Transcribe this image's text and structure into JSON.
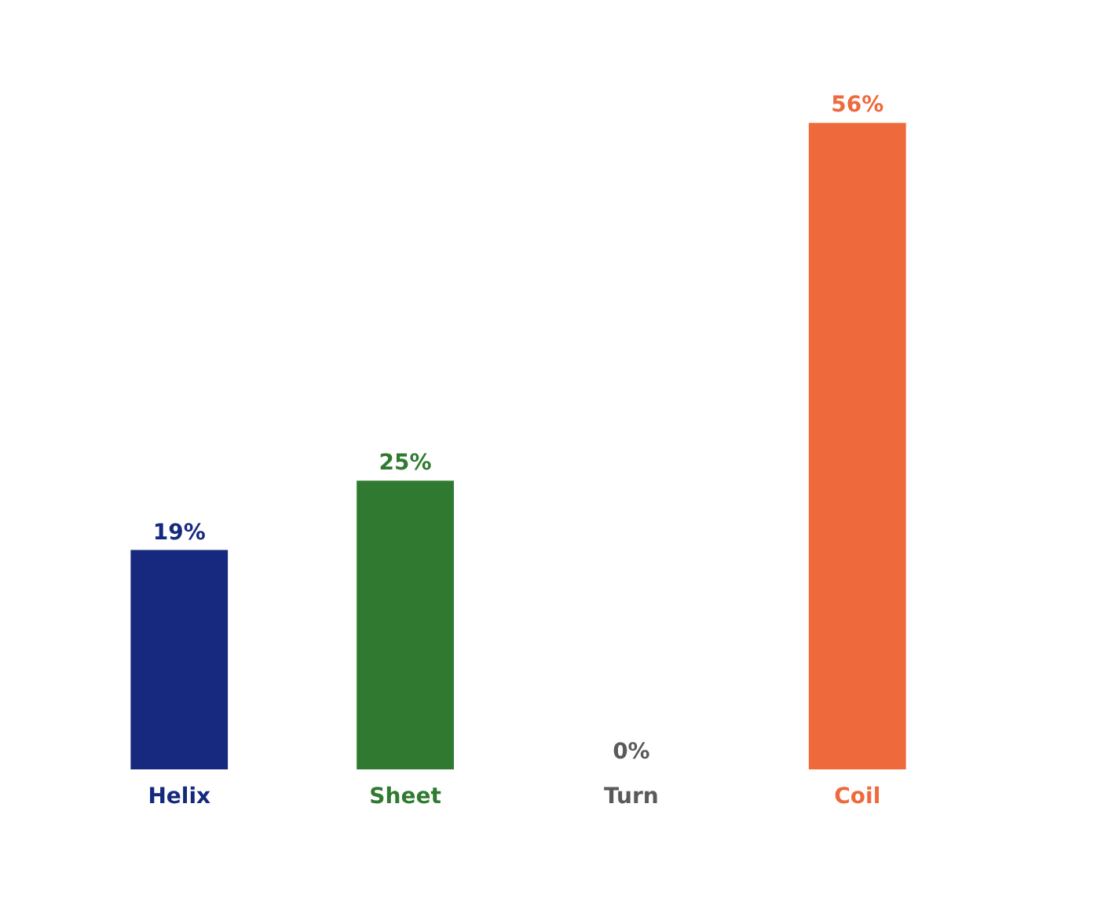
{
  "chart_data": {
    "type": "bar",
    "categories": [
      "Helix",
      "Sheet",
      "Turn",
      "Coil"
    ],
    "values": [
      19,
      25,
      0,
      56
    ],
    "colors": [
      "#16297e",
      "#2f7a30",
      "#5a5a5a",
      "#ee6a3c"
    ],
    "value_labels": [
      "19%",
      "25%",
      "0%",
      "56%"
    ]
  }
}
